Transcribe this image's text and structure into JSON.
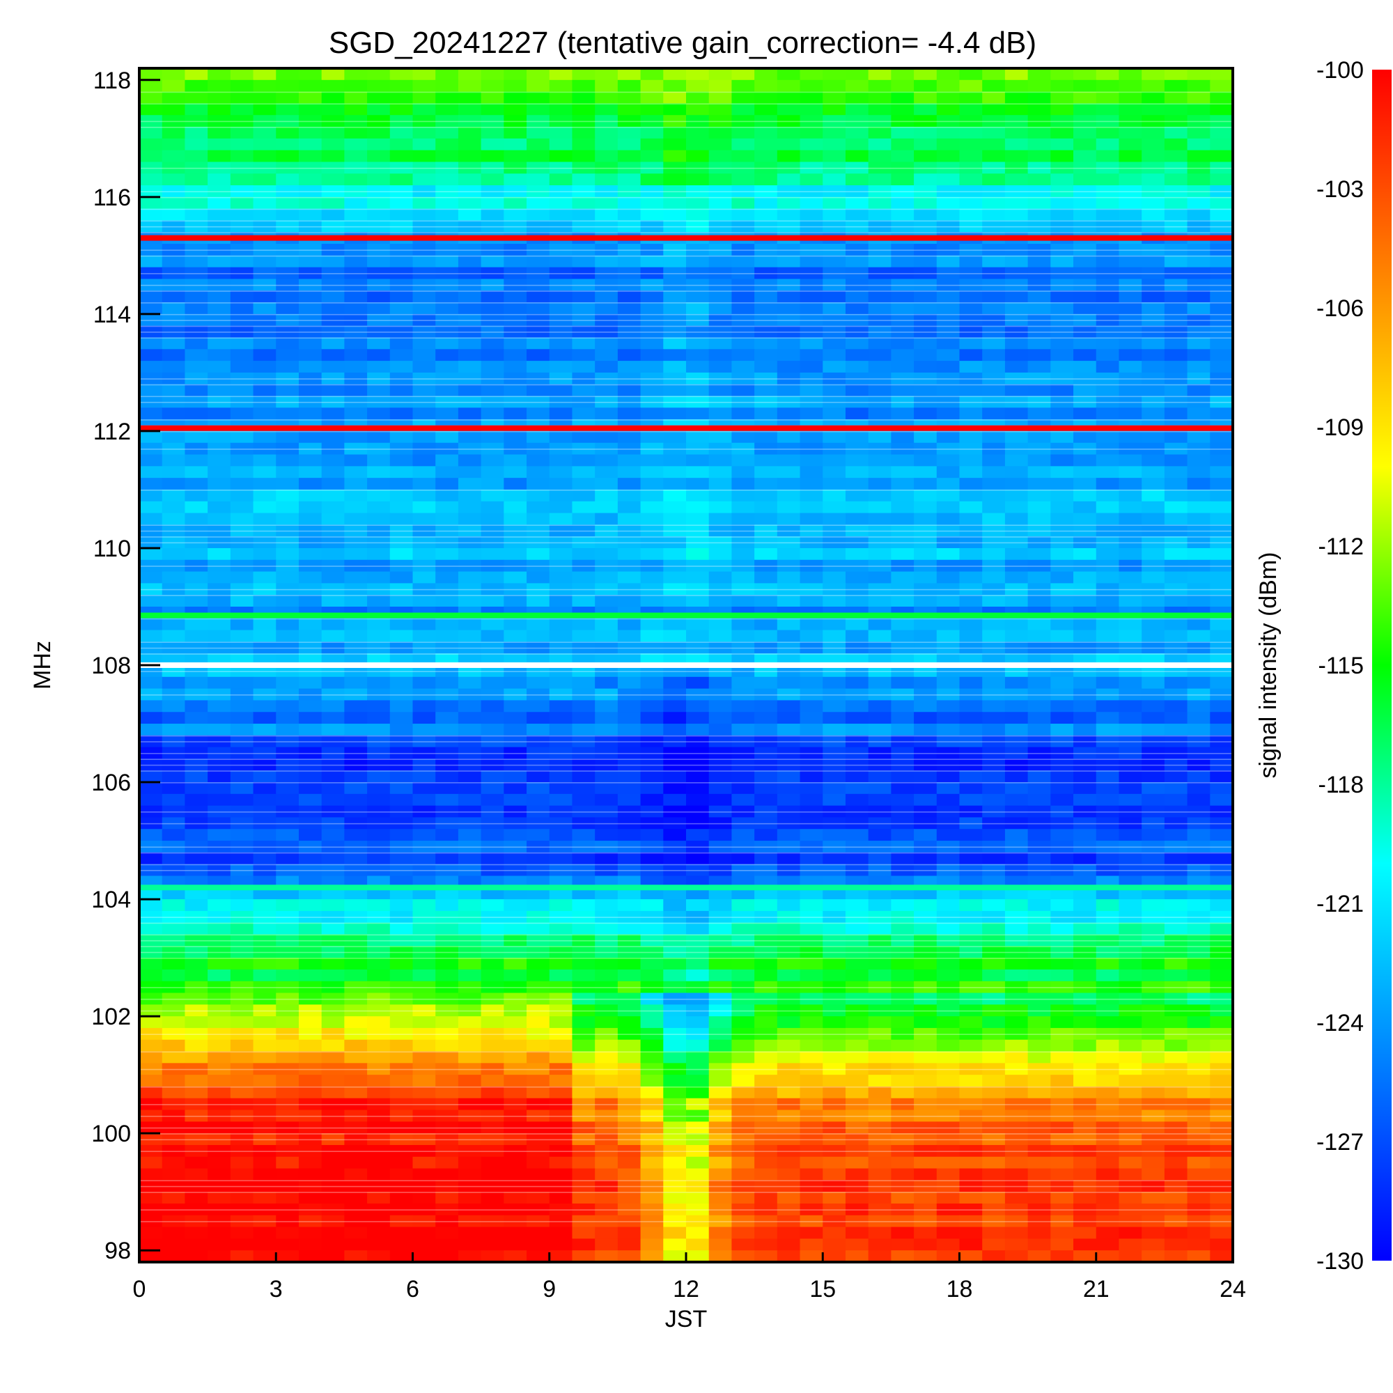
{
  "chart_data": {
    "type": "heatmap",
    "title": "SGD_20241227 (tentative gain_correction= -4.4 dB)",
    "xlabel": "JST",
    "ylabel": "MHz",
    "colorbar_label": "signal intensity (dBm)",
    "xlim": [
      0,
      24
    ],
    "ylim": [
      97.8,
      118.2
    ],
    "clim": [
      -130,
      -100
    ],
    "x_ticks": [
      "0",
      "3",
      "6",
      "9",
      "12",
      "15",
      "18",
      "21",
      "24"
    ],
    "x_tick_values": [
      0,
      3,
      6,
      9,
      12,
      15,
      18,
      21,
      24
    ],
    "y_ticks": [
      "98",
      "100",
      "102",
      "104",
      "106",
      "108",
      "110",
      "112",
      "114",
      "116",
      "118"
    ],
    "y_tick_values": [
      98,
      100,
      102,
      104,
      106,
      108,
      110,
      112,
      114,
      116,
      118
    ],
    "colorbar_ticks": [
      "-100",
      "-103",
      "-106",
      "-109",
      "-112",
      "-115",
      "-118",
      "-121",
      "-124",
      "-127",
      "-130"
    ],
    "colorbar_tick_values": [
      -100,
      -103,
      -106,
      -109,
      -112,
      -115,
      -118,
      -121,
      -124,
      -127,
      -130
    ],
    "colormap": [
      "#0000ff",
      "#0080ff",
      "#00ffff",
      "#00ff00",
      "#ffff00",
      "#ff8000",
      "#ff0000"
    ],
    "frequency_profile": [
      {
        "f": 97.8,
        "dbm": -100
      },
      {
        "f": 99.5,
        "dbm": -100
      },
      {
        "f": 100.5,
        "dbm": -101
      },
      {
        "f": 101.2,
        "dbm": -105
      },
      {
        "f": 101.8,
        "dbm": -110
      },
      {
        "f": 102.4,
        "dbm": -114
      },
      {
        "f": 103.2,
        "dbm": -117
      },
      {
        "f": 104.0,
        "dbm": -121
      },
      {
        "f": 104.4,
        "dbm": -126
      },
      {
        "f": 105.5,
        "dbm": -128
      },
      {
        "f": 106.5,
        "dbm": -127
      },
      {
        "f": 107.4,
        "dbm": -124
      },
      {
        "f": 108.0,
        "dbm": -123
      },
      {
        "f": 108.6,
        "dbm": -124
      },
      {
        "f": 110.0,
        "dbm": -123
      },
      {
        "f": 111.5,
        "dbm": -123
      },
      {
        "f": 112.2,
        "dbm": -124
      },
      {
        "f": 114.0,
        "dbm": -126
      },
      {
        "f": 115.0,
        "dbm": -125
      },
      {
        "f": 116.0,
        "dbm": -120
      },
      {
        "f": 117.0,
        "dbm": -116
      },
      {
        "f": 118.2,
        "dbm": -113
      }
    ],
    "steady_lines": [
      {
        "f": 115.3,
        "dbm": -100
      },
      {
        "f": 112.05,
        "dbm": -100
      },
      {
        "f": 108.85,
        "dbm": -116
      },
      {
        "f": 104.2,
        "dbm": -118
      }
    ],
    "midday_dip": {
      "center_jst": 12,
      "width_hours": 0.8,
      "depth_db": 8
    },
    "morning_step": {
      "jst": 9.7,
      "depth_db": 4
    }
  }
}
